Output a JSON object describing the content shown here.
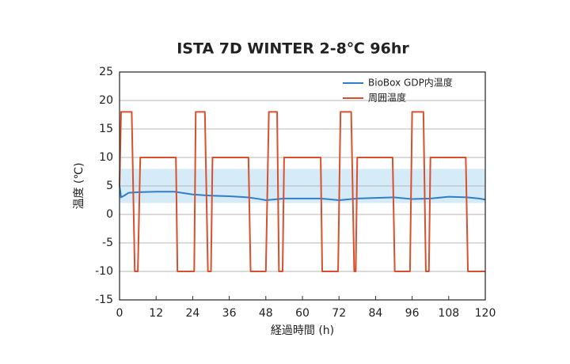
{
  "chart_data": {
    "type": "line",
    "title": "ISTA 7D WINTER 2-8℃ 96hr",
    "x_label": "経過時間 (h)",
    "y_label": "温度 (℃)",
    "xlim": [
      0,
      120
    ],
    "xticks": [
      0,
      12,
      24,
      36,
      48,
      60,
      72,
      84,
      96,
      108,
      120
    ],
    "ylim": [
      -15,
      25
    ],
    "yticks": [
      -15,
      -10,
      -5,
      0,
      5,
      10,
      15,
      20,
      25
    ],
    "grid": true,
    "legend": "upper right",
    "band": [
      2,
      8
    ],
    "band_color": "#d6ebf8",
    "series": [
      {
        "name": "BioBox GDP内温度",
        "color": "#2f7fc8",
        "x": [
          0,
          0.5,
          1.5,
          3,
          6,
          12,
          18,
          24,
          30,
          36,
          42,
          46,
          48,
          54,
          60,
          66,
          70,
          72,
          78,
          84,
          90,
          96,
          102,
          108,
          114,
          118,
          120
        ],
        "values": [
          5,
          3,
          3.3,
          3.8,
          3.9,
          4,
          4,
          3.5,
          3.3,
          3.2,
          3,
          2.7,
          2.5,
          2.8,
          2.8,
          2.8,
          2.6,
          2.5,
          2.8,
          2.9,
          3,
          2.7,
          2.8,
          3.1,
          3,
          2.8,
          2.6
        ]
      },
      {
        "name": "周囲温度",
        "color": "#d9502e",
        "x": [
          0,
          0.5,
          4,
          5,
          6,
          6.8,
          18.5,
          19,
          24.5,
          25,
          28,
          29,
          30,
          30.5,
          42.3,
          43,
          48,
          49,
          51.7,
          52.3,
          53.5,
          54,
          66,
          66.5,
          71.7,
          72.5,
          76,
          77,
          77.5,
          78,
          89.6,
          90.3,
          95.3,
          96,
          99.7,
          100.5,
          101.5,
          102,
          113.6,
          114.3,
          120
        ],
        "values": [
          5,
          18,
          18,
          -10,
          -10,
          10,
          10,
          -10,
          -10,
          18,
          18,
          -10,
          -10,
          10,
          10,
          -10,
          -10,
          18,
          18,
          -10,
          -10,
          10,
          10,
          -10,
          -10,
          18,
          18,
          -10,
          -10,
          10,
          10,
          -10,
          -10,
          18,
          18,
          -10,
          -10,
          10,
          10,
          -10,
          -10
        ]
      }
    ]
  }
}
